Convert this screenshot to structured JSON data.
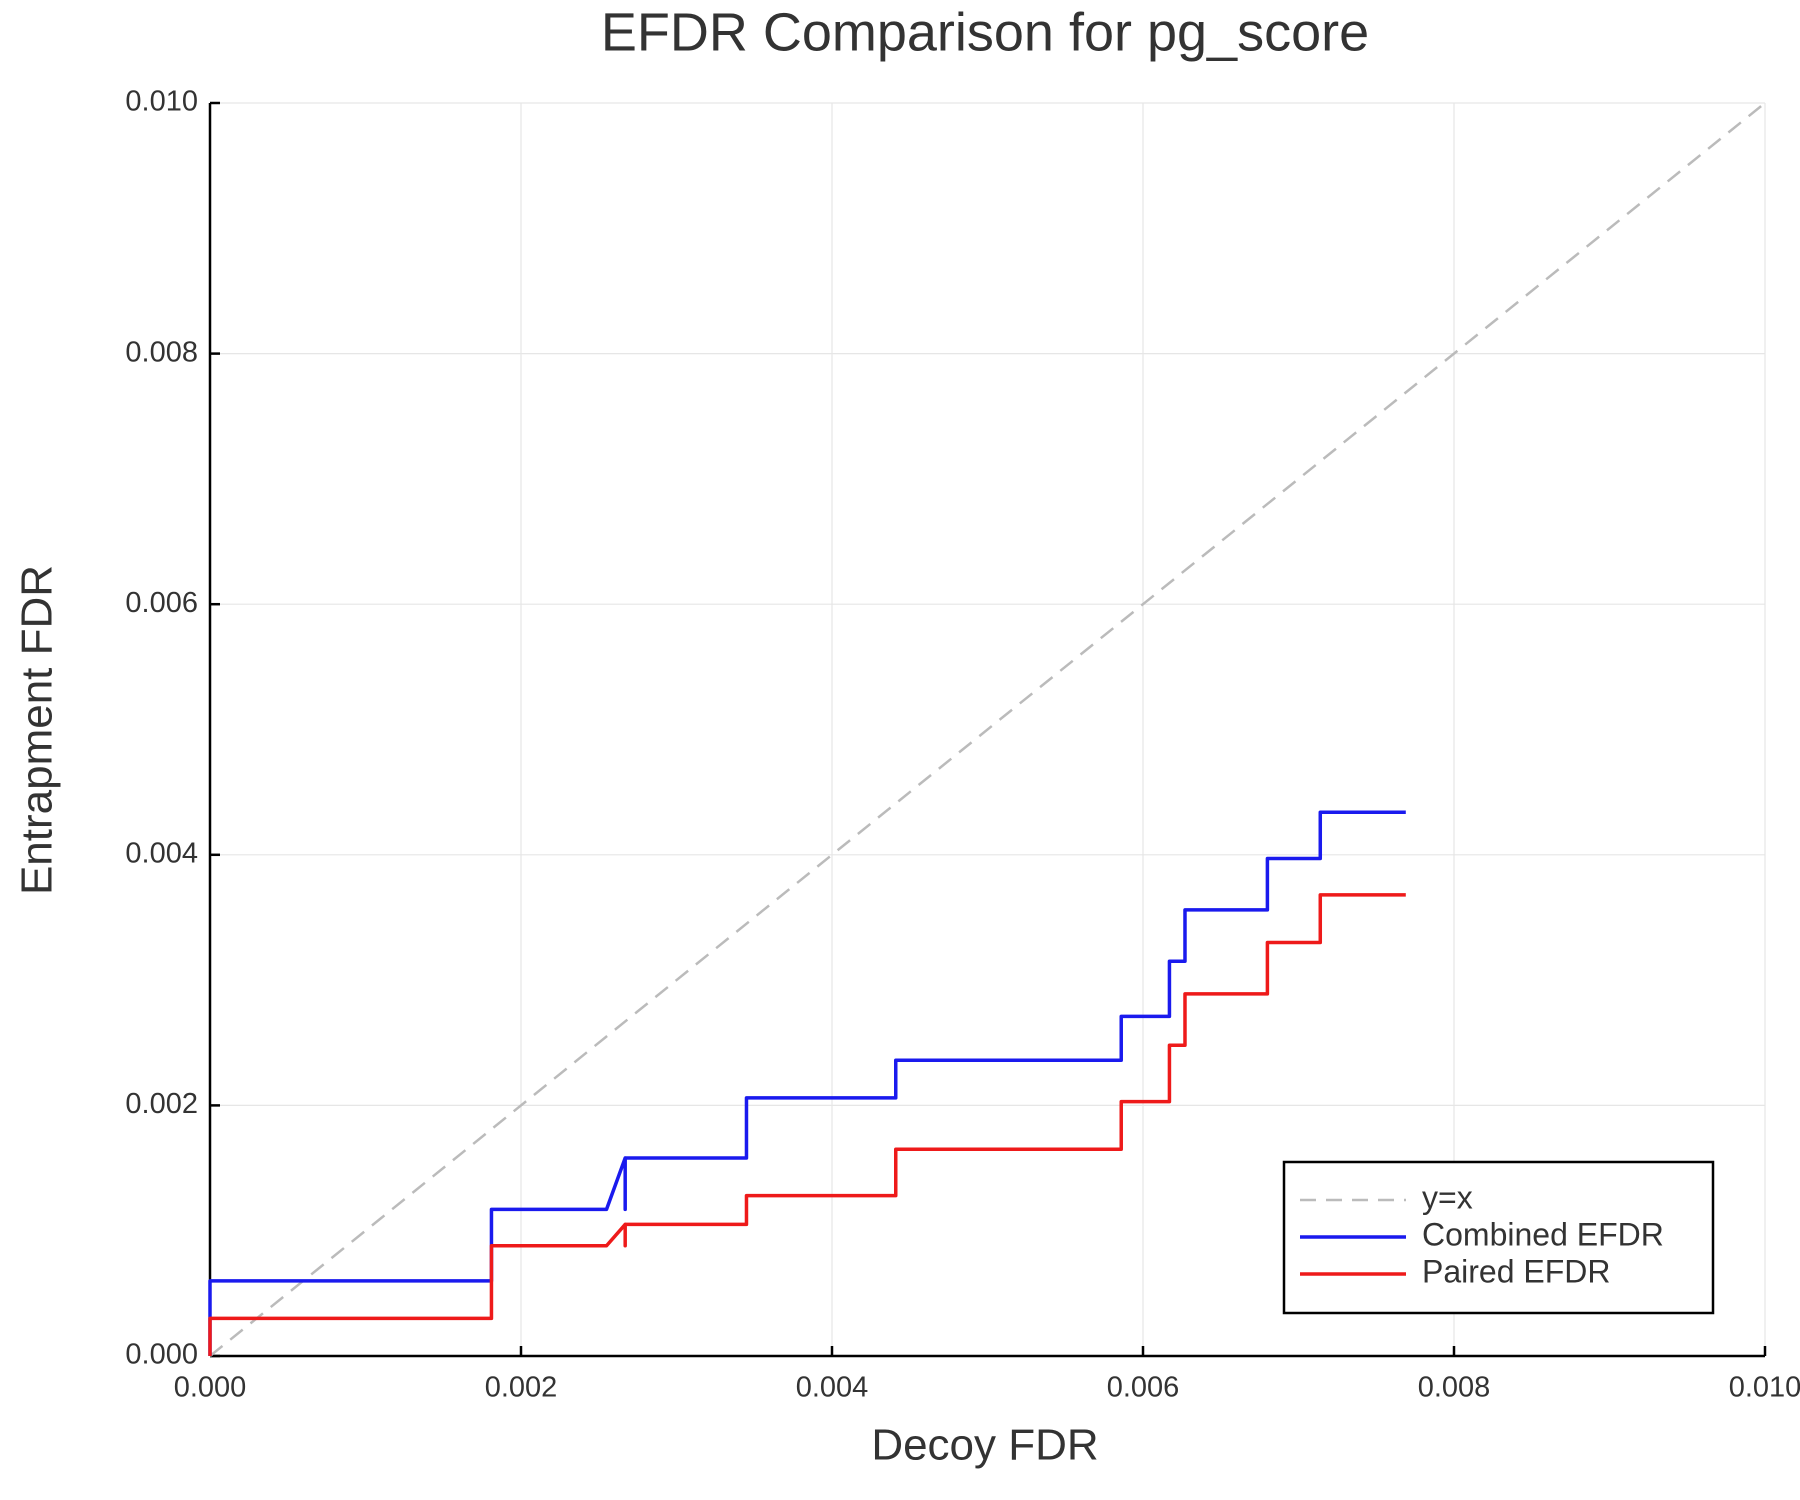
{
  "chart_data": {
    "type": "line",
    "title": "EFDR Comparison for pg_score",
    "x_label": "Decoy FDR",
    "y_label": "Entrapment FDR",
    "xlim": [
      0,
      0.01
    ],
    "ylim": [
      0,
      0.01
    ],
    "xticks": [
      {
        "value": 0,
        "label": "0.000"
      },
      {
        "value": 0.002,
        "label": "0.002"
      },
      {
        "value": 0.004,
        "label": "0.004"
      },
      {
        "value": 0.006,
        "label": "0.006"
      },
      {
        "value": 0.008,
        "label": "0.008"
      },
      {
        "value": 0.01,
        "label": "0.010"
      }
    ],
    "yticks": [
      {
        "value": 0,
        "label": "0.000"
      },
      {
        "value": 0.002,
        "label": "0.002"
      },
      {
        "value": 0.004,
        "label": "0.004"
      },
      {
        "value": 0.006,
        "label": "0.006"
      },
      {
        "value": 0.008,
        "label": "0.008"
      },
      {
        "value": 0.01,
        "label": "0.010"
      }
    ],
    "grid": true,
    "legend": "bottom-right",
    "series": [
      {
        "name": "y=x",
        "color": "#bbbbbb",
        "dashed": true,
        "x": [
          0,
          0.01
        ],
        "values": [
          0,
          0.01
        ]
      },
      {
        "name": "Combined EFDR",
        "color": "#1a1aee",
        "dashed": false,
        "x": [
          0,
          0,
          0.00181,
          0.00181,
          0.00255,
          0.00267,
          0.00267,
          0.00267,
          0.00345,
          0.00345,
          0.00441,
          0.00441,
          0.00586,
          0.00586,
          0.00617,
          0.00617,
          0.00627,
          0.00627,
          0.0068,
          0.0068,
          0.00714,
          0.00714,
          0.00769
        ],
        "values": [
          0,
          0.0006,
          0.0006,
          0.00117,
          0.00117,
          0.00158,
          0.00117,
          0.00158,
          0.00158,
          0.00206,
          0.00206,
          0.00236,
          0.00236,
          0.00271,
          0.00271,
          0.00315,
          0.00315,
          0.00356,
          0.00356,
          0.00397,
          0.00397,
          0.00434,
          0.00434
        ]
      },
      {
        "name": "Paired EFDR",
        "color": "#ee1a1a",
        "dashed": false,
        "x": [
          0,
          0,
          0.00181,
          0.00181,
          0.00255,
          0.00267,
          0.00267,
          0.00267,
          0.00345,
          0.00345,
          0.00441,
          0.00441,
          0.00586,
          0.00586,
          0.00617,
          0.00617,
          0.00627,
          0.00627,
          0.0068,
          0.0068,
          0.00714,
          0.00714,
          0.00769
        ],
        "values": [
          0,
          0.0003,
          0.0003,
          0.00088,
          0.00088,
          0.00105,
          0.00088,
          0.00105,
          0.00105,
          0.00128,
          0.00128,
          0.00165,
          0.00165,
          0.00203,
          0.00203,
          0.00248,
          0.00248,
          0.00289,
          0.00289,
          0.0033,
          0.0033,
          0.00368,
          0.00368
        ]
      }
    ]
  }
}
